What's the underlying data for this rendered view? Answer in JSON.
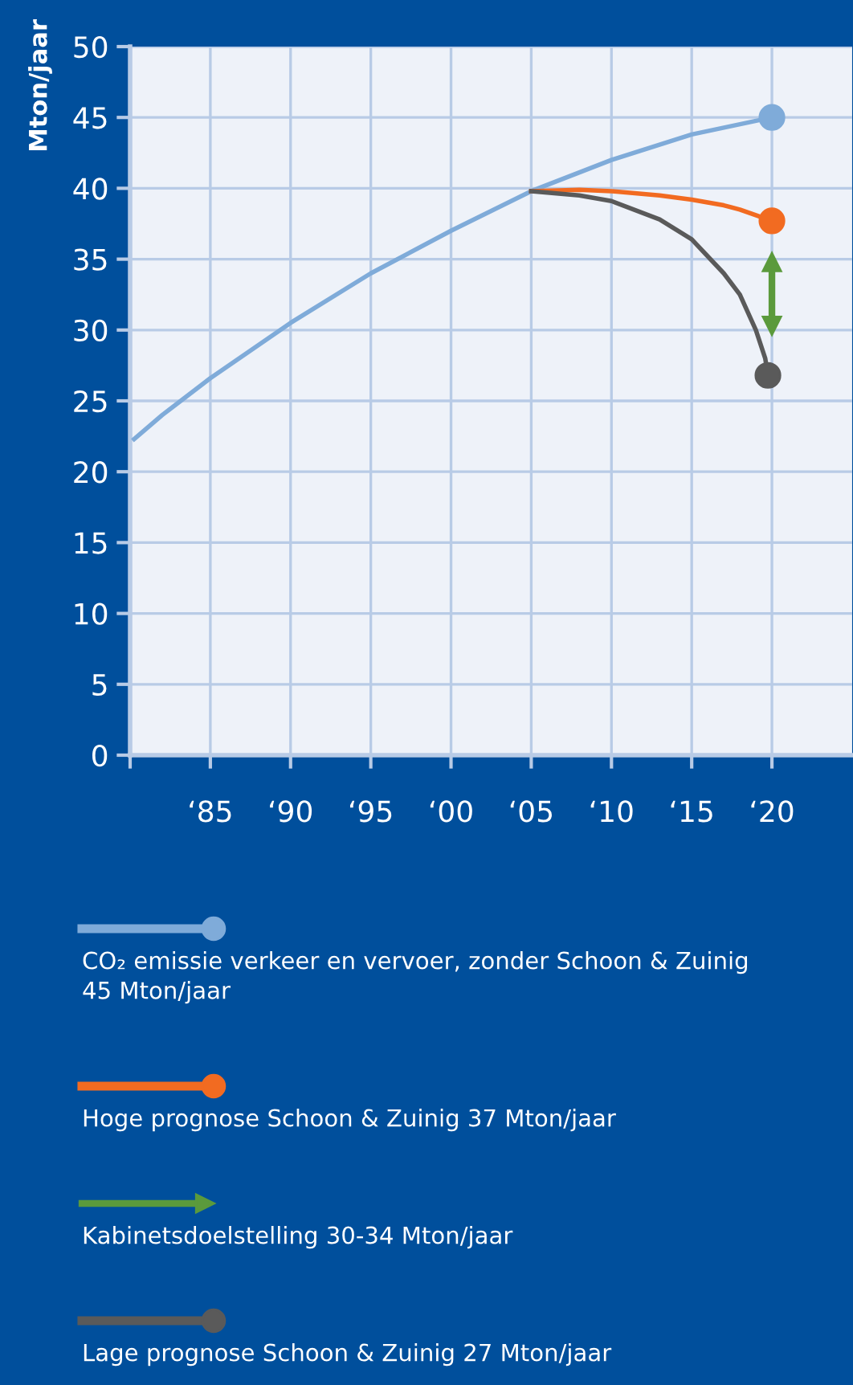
{
  "chart_data": {
    "type": "line",
    "ylabel": "Mton/jaar",
    "xlim": [
      "1980",
      "2025"
    ],
    "ylim": [
      0,
      50
    ],
    "xticks": [
      {
        "value": "1980",
        "label": null
      },
      {
        "value": "1985",
        "label": "‘85"
      },
      {
        "value": "1990",
        "label": "‘90"
      },
      {
        "value": "1995",
        "label": "‘95"
      },
      {
        "value": "2000",
        "label": "‘00"
      },
      {
        "value": "2005",
        "label": "‘05"
      },
      {
        "value": "2010",
        "label": "‘10"
      },
      {
        "value": "2015",
        "label": "‘15"
      },
      {
        "value": "2020",
        "label": "‘20"
      }
    ],
    "yticks": [
      0,
      5,
      10,
      15,
      20,
      25,
      30,
      35,
      40,
      45,
      50
    ],
    "grid": true,
    "legend": "bottom",
    "series": [
      {
        "name": "CO₂ emissie verkeer en vervoer, zonder Schoon & Zuinig\n45 Mton/jaar",
        "color": "#7fabd9",
        "x": [
          "1980-04",
          "1982",
          "1985",
          "1990",
          "1995",
          "2000",
          "2005",
          "2010",
          "2015",
          "2020"
        ],
        "values": [
          22.3,
          24.0,
          26.6,
          30.5,
          34.0,
          37.0,
          39.8,
          42.0,
          43.8,
          45.0
        ]
      },
      {
        "name": "Hoge prognose Schoon & Zuinig 37 Mton/jaar",
        "color": "#f26b21",
        "x": [
          "2005",
          "2008",
          "2010",
          "2013",
          "2015",
          "2017",
          "2018",
          "2019",
          "2020"
        ],
        "values": [
          39.8,
          39.9,
          39.8,
          39.5,
          39.2,
          38.8,
          38.5,
          38.1,
          37.7
        ]
      },
      {
        "name": "Kabinetsdoelstelling 30-34 Mton/jaar",
        "color": "#5b9a3c",
        "marker": "triangle",
        "x": [
          "2020",
          "2020"
        ],
        "values": [
          30.3,
          34.8
        ]
      },
      {
        "name": "Lage prognose Schoon & Zuinig 27 Mton/jaar",
        "color": "#5a5a5a",
        "x": [
          "2005",
          "2008",
          "2010",
          "2013",
          "2015",
          "2017",
          "2018",
          "2019",
          "2019-08",
          "2019-10"
        ],
        "values": [
          39.8,
          39.5,
          39.1,
          37.8,
          36.4,
          34.0,
          32.5,
          30.0,
          28.0,
          26.8
        ]
      },
      {
        "type": "scatter",
        "color": "#7fabd9",
        "marker": "circle",
        "x": [
          "2020"
        ],
        "values": [
          45.0
        ]
      },
      {
        "type": "scatter",
        "color": "#f26b21",
        "marker": "circle",
        "x": [
          "2020"
        ],
        "values": [
          37.7
        ]
      },
      {
        "type": "scatter",
        "color": "#5a5a5a",
        "marker": "circle",
        "x": [
          "2019-10"
        ],
        "values": [
          26.8
        ]
      }
    ]
  }
}
